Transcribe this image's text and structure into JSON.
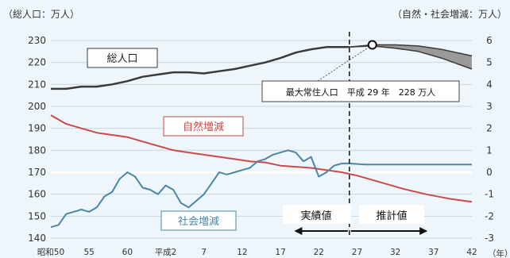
{
  "chart_data": {
    "type": "line",
    "units": {
      "left": "（総人口：万人）",
      "right": "（自然・社会増減：万人）",
      "x": "（年）"
    },
    "x_tick_labels": [
      "昭和50",
      "55",
      "60",
      "平成2",
      "7",
      "12",
      "17",
      "22",
      "27",
      "32",
      "37",
      "42"
    ],
    "y_left": {
      "ylim": [
        140,
        230
      ],
      "ticks": [
        140,
        150,
        160,
        170,
        180,
        190,
        200,
        210,
        220,
        230
      ]
    },
    "y_right": {
      "ylim": [
        -3,
        6
      ],
      "ticks": [
        -3,
        -2,
        -1,
        0,
        1,
        2,
        3,
        4,
        5,
        6
      ]
    },
    "series": [
      {
        "name": "総人口",
        "axis": "left",
        "color": "#3a3a3a",
        "x": [
          1975,
          1977,
          1979,
          1981,
          1983,
          1985,
          1987,
          1989,
          1991,
          1993,
          1995,
          1997,
          1999,
          2001,
          2003,
          2005,
          2007,
          2009,
          2011,
          2013,
          2014
        ],
        "values": [
          208,
          208,
          209,
          209,
          210,
          211.5,
          213.5,
          214.5,
          215.5,
          215.5,
          215,
          216,
          217,
          218.5,
          220,
          222,
          224.5,
          226,
          227,
          227,
          227
        ]
      },
      {
        "name": "総人口（推計・上限）",
        "axis": "left",
        "color": "#3a3a3a",
        "x": [
          2014,
          2017,
          2020,
          2023,
          2026,
          2030
        ],
        "values": [
          227,
          228,
          228,
          227.5,
          226,
          223
        ]
      },
      {
        "name": "総人口（推計・下限）",
        "axis": "left",
        "color": "#3a3a3a",
        "x": [
          2014,
          2017,
          2020,
          2023,
          2026,
          2030
        ],
        "values": [
          227,
          227.5,
          226.5,
          225,
          222,
          217
        ]
      },
      {
        "name": "自然増減",
        "axis": "right",
        "color": "#c94a4a",
        "x": [
          1975,
          1977,
          1979,
          1981,
          1983,
          1985,
          1987,
          1989,
          1991,
          1993,
          1995,
          1997,
          1999,
          2001,
          2003,
          2005,
          2007,
          2009,
          2011,
          2013,
          2015,
          2018,
          2021,
          2024,
          2027,
          2030
        ],
        "values": [
          2.6,
          2.2,
          2.0,
          1.8,
          1.7,
          1.6,
          1.4,
          1.2,
          1.0,
          0.9,
          0.8,
          0.7,
          0.6,
          0.5,
          0.45,
          0.3,
          0.25,
          0.2,
          0.1,
          0.0,
          -0.15,
          -0.45,
          -0.75,
          -1.0,
          -1.2,
          -1.35
        ]
      },
      {
        "name": "社会増減",
        "axis": "right",
        "color": "#4a86a8",
        "x": [
          1975,
          1976,
          1977,
          1978,
          1979,
          1980,
          1981,
          1982,
          1983,
          1984,
          1985,
          1986,
          1987,
          1988,
          1989,
          1990,
          1991,
          1992,
          1993,
          1994,
          1995,
          1996,
          1997,
          1998,
          1999,
          2000,
          2001,
          2002,
          2003,
          2004,
          2005,
          2006,
          2007,
          2008,
          2009,
          2010,
          2011,
          2012,
          2013,
          2014,
          2016,
          2020,
          2025,
          2030
        ],
        "values": [
          -2.5,
          -2.4,
          -1.9,
          -1.8,
          -1.7,
          -1.8,
          -1.6,
          -1.1,
          -0.9,
          -0.3,
          0.0,
          -0.2,
          -0.7,
          -0.8,
          -1.0,
          -0.6,
          -0.8,
          -1.4,
          -1.6,
          -1.3,
          -1.0,
          -0.5,
          0.0,
          -0.1,
          0.0,
          0.1,
          0.2,
          0.5,
          0.6,
          0.8,
          0.9,
          1.0,
          0.9,
          0.5,
          0.7,
          -0.2,
          0.0,
          0.3,
          0.4,
          0.4,
          0.35,
          0.35,
          0.35,
          0.35
        ]
      }
    ],
    "series_labels": [
      "総人口",
      "自然増減",
      "社会増減"
    ],
    "annotations": {
      "peak": {
        "text": "最大常住人口　平成 29 年　228 万人",
        "x": 2017,
        "value": 228
      },
      "actual": "実績値",
      "projected": "推計値",
      "divider_x": 2014
    }
  }
}
